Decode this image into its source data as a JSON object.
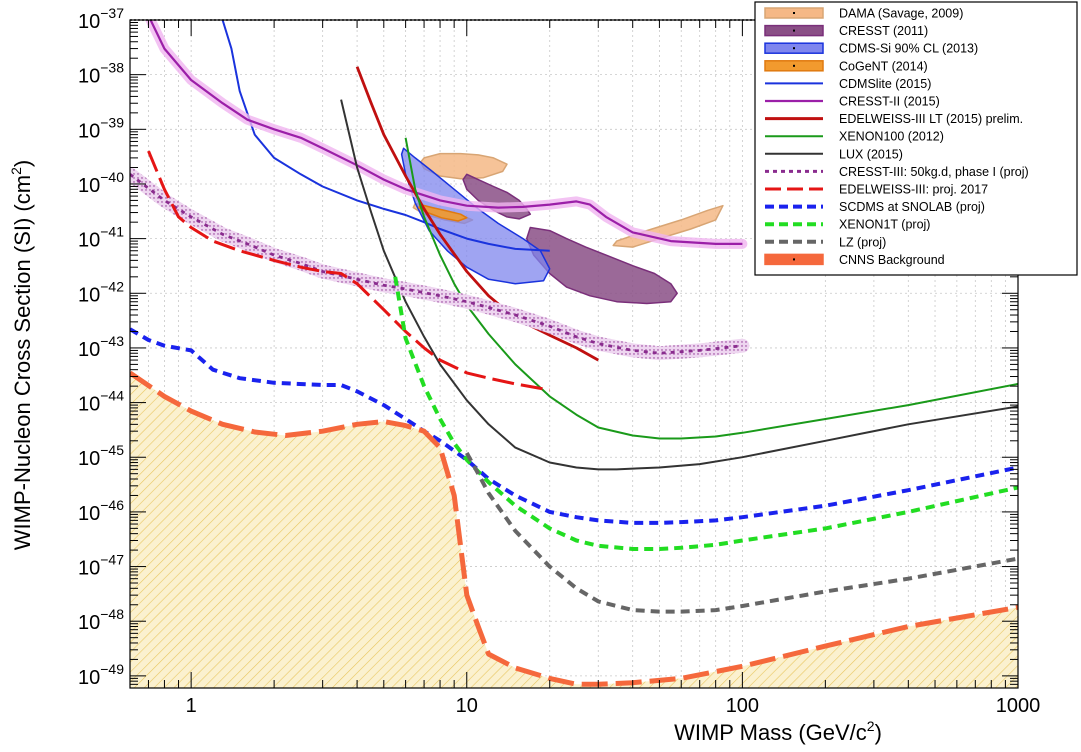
{
  "chart_data": {
    "type": "line",
    "xlabel": "WIMP Mass (GeV/c",
    "xlabel_sup": "2",
    "xlabel_end": ")",
    "ylabel": "WIMP-Nucleon Cross Section (SI) (cm",
    "ylabel_sup": "2",
    "ylabel_end": ")",
    "x_scale": "log",
    "y_scale": "log",
    "xlim": [
      0.6,
      1000
    ],
    "ylim": [
      6e-50,
      1e-37
    ],
    "x_tick_labels": [
      {
        "value": 1,
        "label": "1"
      },
      {
        "value": 10,
        "label": "10"
      },
      {
        "value": 100,
        "label": "100"
      },
      {
        "value": 1000,
        "label": "1000"
      }
    ],
    "y_tick_labels": [
      {
        "exp": -37,
        "base": "10",
        "sup": "−37"
      },
      {
        "exp": -38,
        "base": "10",
        "sup": "−38"
      },
      {
        "exp": -39,
        "base": "10",
        "sup": "−39"
      },
      {
        "exp": -40,
        "base": "10",
        "sup": "−40"
      },
      {
        "exp": -41,
        "base": "10",
        "sup": "−41"
      },
      {
        "exp": -42,
        "base": "10",
        "sup": "−42"
      },
      {
        "exp": -43,
        "base": "10",
        "sup": "−43"
      },
      {
        "exp": -44,
        "base": "10",
        "sup": "−44"
      },
      {
        "exp": -45,
        "base": "10",
        "sup": "−45"
      },
      {
        "exp": -46,
        "base": "10",
        "sup": "−46"
      },
      {
        "exp": -47,
        "base": "10",
        "sup": "−47"
      },
      {
        "exp": -48,
        "base": "10",
        "sup": "−48"
      },
      {
        "exp": -49,
        "base": "10",
        "sup": "−49"
      }
    ],
    "grid": true,
    "legend_position": "top-right",
    "background_region": {
      "name": "CNNS Background",
      "fill": "#f3e6b8",
      "hatch": "#e7c96b",
      "x": [
        0.6,
        0.8,
        1,
        1.3,
        1.7,
        2.2,
        3,
        4,
        5,
        6,
        7,
        8,
        9,
        10,
        11,
        12,
        15,
        20,
        25,
        30,
        40,
        60,
        100,
        200,
        400,
        1000
      ],
      "y": [
        3.5e-44,
        1.3e-44,
        7e-45,
        4e-45,
        2.9e-45,
        2.5e-45,
        3e-45,
        4e-45,
        4.5e-45,
        3.8e-45,
        3e-45,
        1.5e-45,
        2e-46,
        3e-48,
        8e-49,
        2.5e-49,
        1.4e-49,
        9e-50,
        7e-50,
        7e-50,
        7.5e-50,
        9e-50,
        1.5e-49,
        3.5e-49,
        8e-49,
        1.8e-48
      ]
    },
    "regions": [
      {
        "name": "DAMA (Savage, 2009)",
        "fill": "#f5b886",
        "stroke": "#d8a574",
        "opacity": 0.85,
        "blobs": [
          {
            "x": [
              7,
              8,
              9.5,
              11,
              12.5,
              14,
              13.5,
              11.5,
              9.5,
              8,
              7,
              6.8
            ],
            "y": [
              3e-40,
              3.6e-40,
              3.6e-40,
              3.4e-40,
              3e-40,
              2.3e-40,
              1.7e-40,
              1.3e-40,
              1.25e-40,
              1.4e-40,
              1.9e-40,
              2.5e-40
            ]
          },
          {
            "x": [
              6.5,
              7.2,
              8.3,
              9.5,
              10.5,
              9.8,
              8.3,
              7,
              6.4
            ],
            "y": [
              4.4e-41,
              3.9e-41,
              3.3e-41,
              2.7e-41,
              2.2e-41,
              1.9e-41,
              2.2e-41,
              2.8e-41,
              3.7e-41
            ]
          },
          {
            "x": [
              35,
              45,
              60,
              75,
              85,
              80,
              65,
              50,
              40,
              34
            ],
            "y": [
              9e-42,
              1.4e-41,
              2.2e-41,
              3.3e-41,
              4e-41,
              2.2e-41,
              1.5e-41,
              1e-41,
              7e-42,
              7.5e-42
            ]
          }
        ]
      },
      {
        "name": "CRESST (2011)",
        "fill": "#8a4f86",
        "stroke": "#7a2f7a",
        "opacity": 0.85,
        "blobs": [
          {
            "x": [
              10,
              11,
              12.5,
              14,
              15.5,
              16.5,
              17,
              15.5,
              14,
              12.5,
              11,
              10,
              9.7
            ],
            "y": [
              1.5e-40,
              1.2e-40,
              9e-41,
              7e-41,
              5e-41,
              3.5e-41,
              2.8e-41,
              2.3e-41,
              2.5e-41,
              3.3e-41,
              5e-41,
              8e-41,
              1.2e-40
            ]
          },
          {
            "x": [
              17,
              20,
              23,
              27,
              32,
              40,
              48,
              55,
              58,
              55,
              45,
              35,
              28,
              23,
              20,
              17.5,
              16.5
            ],
            "y": [
              1.6e-41,
              1.4e-41,
              1e-41,
              7e-42,
              5e-42,
              3.2e-42,
              2.3e-42,
              1.5e-42,
              1e-42,
              7e-43,
              6.5e-43,
              7e-43,
              9e-43,
              1.3e-42,
              2.3e-42,
              5e-42,
              1e-41
            ]
          }
        ]
      },
      {
        "name": "CDMS-Si 90% CL (2013)",
        "fill": "#7f86ee",
        "stroke": "#1a33dd",
        "opacity": 0.75,
        "blobs": [
          {
            "x": [
              5.9,
              6.5,
              7.5,
              9,
              11,
              13,
              16,
              18.5,
              20,
              19,
              15,
              12,
              10,
              8.5,
              7.3,
              6.5,
              6,
              5.8
            ],
            "y": [
              4.5e-40,
              3e-40,
              1.7e-40,
              8e-41,
              3.5e-41,
              1.9e-41,
              1e-41,
              6e-42,
              2.8e-42,
              1.7e-42,
              1.5e-42,
              1.8e-42,
              3e-42,
              6e-42,
              1.4e-41,
              4.5e-41,
              1.5e-40,
              3.5e-40
            ]
          }
        ]
      },
      {
        "name": "CoGeNT (2014)",
        "fill": "#f29a2e",
        "stroke": "#e07a10",
        "opacity": 0.9,
        "blobs": [
          {
            "x": [
              6.8,
              7.5,
              8.5,
              9.5,
              10,
              9.3,
              8.1,
              7.2,
              6.7
            ],
            "y": [
              4.2e-41,
              3.7e-41,
              3.2e-41,
              2.8e-41,
              2.4e-41,
              2.1e-41,
              2.4e-41,
              3e-41,
              3.7e-41
            ]
          }
        ]
      }
    ],
    "series": [
      {
        "name": "CDMSlite (2015)",
        "color": "#1a33dd",
        "width": 2,
        "dash": "",
        "x": [
          1.3,
          1.4,
          1.5,
          1.7,
          2,
          2.5,
          3,
          4,
          5,
          6,
          7,
          8,
          10,
          12,
          15,
          20
        ],
        "y": [
          1e-37,
          3e-38,
          5e-39,
          8e-40,
          3e-40,
          1.5e-40,
          9e-41,
          5e-41,
          3.5e-41,
          2.7e-41,
          2e-41,
          1.5e-41,
          1e-41,
          8e-42,
          6.5e-42,
          6e-42
        ]
      },
      {
        "name": "CRESST-II (2015)",
        "color": "#9b1fa8",
        "width": 2.2,
        "dash": "",
        "band": "#f0b4f0",
        "band_width": 10,
        "x": [
          0.6,
          0.7,
          0.8,
          1,
          1.3,
          1.6,
          2,
          2.5,
          3,
          4,
          5,
          6,
          8,
          10,
          13,
          16,
          20,
          25,
          28,
          32,
          40,
          55,
          80,
          100
        ],
        "y": [
          3e-37,
          1.2e-37,
          3e-38,
          8e-39,
          3e-39,
          1.5e-39,
          1e-39,
          7e-40,
          4.5e-40,
          2.2e-40,
          1.2e-40,
          8e-41,
          5e-41,
          4e-41,
          3.7e-41,
          3.8e-41,
          4.2e-41,
          4.8e-41,
          4.2e-41,
          2.5e-41,
          1.3e-41,
          9e-42,
          8e-42,
          8e-42
        ]
      },
      {
        "name": "EDELWEISS-III LT (2015) prelim.",
        "color": "#c01010",
        "width": 2.8,
        "dash": "",
        "x": [
          4,
          4.5,
          5,
          6,
          7,
          8,
          10,
          12,
          15,
          20,
          25,
          30
        ],
        "y": [
          1.4e-38,
          3e-39,
          8e-40,
          1.4e-40,
          3.5e-41,
          1.2e-41,
          2.5e-42,
          9e-43,
          3.5e-43,
          1.7e-43,
          1e-43,
          6e-44
        ]
      },
      {
        "name": "XENON100 (2012)",
        "color": "#1a9a1a",
        "width": 2,
        "dash": "",
        "x": [
          6,
          6.5,
          7,
          8,
          9,
          10,
          12,
          15,
          20,
          25,
          30,
          40,
          50,
          60,
          80,
          100,
          200,
          400,
          1000
        ],
        "y": [
          7e-40,
          8e-41,
          2.5e-41,
          5e-42,
          1.5e-42,
          6e-43,
          1.8e-43,
          5e-44,
          1.3e-44,
          6e-45,
          3.5e-45,
          2.5e-45,
          2.2e-45,
          2.2e-45,
          2.4e-45,
          2.8e-45,
          5e-45,
          9e-45,
          2.2e-44
        ]
      },
      {
        "name": "LUX (2015)",
        "color": "#333333",
        "width": 2,
        "dash": "",
        "x": [
          3.5,
          4,
          4.5,
          5,
          6,
          7,
          8,
          10,
          12,
          15,
          20,
          25,
          30,
          35,
          40,
          50,
          70,
          100,
          200,
          400,
          1000
        ],
        "y": [
          3.5e-39,
          2e-40,
          3e-41,
          6e-42,
          7e-43,
          1.6e-43,
          5e-44,
          1.1e-44,
          4e-45,
          1.5e-45,
          8e-46,
          6.5e-46,
          6e-46,
          6e-46,
          6.2e-46,
          6.5e-46,
          7.5e-46,
          1e-45,
          2e-45,
          4e-45,
          8.5e-45
        ]
      },
      {
        "name": "CRESST-III: 50kg.d, phase I (proj)",
        "color": "#8a2c8e",
        "width": 2.8,
        "dash": "4,5",
        "band": "#e7c6ea",
        "band_width": 14,
        "band_hatch": true,
        "x": [
          0.6,
          0.8,
          1,
          1.3,
          1.6,
          2,
          2.5,
          3,
          4,
          5,
          6,
          8,
          10,
          12,
          15,
          20,
          25,
          30,
          40,
          50,
          70,
          100
        ],
        "y": [
          1.5e-40,
          5e-41,
          2.5e-41,
          1.2e-41,
          8e-42,
          5e-42,
          3.5e-42,
          2.5e-42,
          1.8e-42,
          1.4e-42,
          1.2e-42,
          9e-43,
          7e-43,
          5.5e-43,
          4e-43,
          2.5e-43,
          1.6e-43,
          1.2e-43,
          9e-44,
          8e-44,
          9e-44,
          1.1e-43
        ]
      },
      {
        "name": "EDELWEISS-III: proj. 2017",
        "color": "#e51515",
        "width": 3,
        "dash": "22,7",
        "x": [
          0.7,
          0.8,
          0.9,
          1,
          1.2,
          1.5,
          2,
          2.5,
          3,
          3.5,
          4,
          5,
          6,
          7,
          8,
          10,
          12,
          15,
          20
        ],
        "y": [
          4e-40,
          8e-41,
          2.5e-41,
          1.6e-41,
          9e-42,
          6e-42,
          4e-42,
          3e-42,
          2.5e-42,
          2.3e-42,
          1.5e-42,
          5e-43,
          2e-43,
          1e-43,
          6e-44,
          3.5e-44,
          2.8e-44,
          2.2e-44,
          1.7e-44
        ]
      },
      {
        "name": "SCDMS at SNOLAB (proj)",
        "color": "#1a22ee",
        "width": 4,
        "dash": "9,6",
        "x": [
          0.6,
          0.7,
          0.8,
          1,
          1.2,
          1.5,
          2,
          3,
          3.5,
          4,
          5,
          6,
          7,
          8,
          10,
          12,
          15,
          20,
          25,
          30,
          40,
          50,
          60,
          80,
          100,
          200,
          400,
          1000
        ],
        "y": [
          2.2e-43,
          1.4e-43,
          1.1e-43,
          9e-44,
          4e-44,
          2.8e-44,
          2.3e-44,
          2.1e-44,
          2.1e-44,
          1.6e-44,
          9e-45,
          5e-45,
          3e-45,
          2e-45,
          9e-46,
          4e-46,
          2e-46,
          1e-46,
          8e-47,
          7e-47,
          6.3e-47,
          6.3e-47,
          6.5e-47,
          7e-47,
          8e-47,
          1.3e-46,
          2.5e-46,
          6.5e-46
        ]
      },
      {
        "name": "XENON1T (proj)",
        "color": "#22dd22",
        "width": 4,
        "dash": "9,6",
        "x": [
          5.5,
          6,
          7,
          8,
          9,
          10,
          12,
          15,
          20,
          25,
          30,
          40,
          50,
          60,
          80,
          100,
          200,
          400,
          1000
        ],
        "y": [
          2e-42,
          1.5e-43,
          2e-44,
          5e-45,
          1.8e-45,
          9e-46,
          3.5e-46,
          1.3e-46,
          5e-47,
          3e-47,
          2.4e-47,
          2.1e-47,
          2.1e-47,
          2.2e-47,
          2.5e-47,
          3e-47,
          5e-47,
          1e-46,
          2.8e-46
        ]
      },
      {
        "name": "LZ (proj)",
        "color": "#666666",
        "width": 4,
        "dash": "9,6",
        "x": [
          10,
          11,
          12,
          15,
          20,
          25,
          30,
          40,
          50,
          60,
          80,
          100,
          200,
          400,
          1000
        ],
        "y": [
          1.2e-45,
          5e-46,
          2.2e-46,
          4.5e-47,
          1e-47,
          4e-48,
          2.3e-48,
          1.6e-48,
          1.5e-48,
          1.5e-48,
          1.6e-48,
          1.9e-48,
          3.5e-48,
          6e-48,
          1.4e-47
        ]
      },
      {
        "name": "CNNS Background",
        "color": "#f5683c",
        "width": 5,
        "dash": "26,8",
        "x": [
          0.6,
          0.8,
          1,
          1.3,
          1.7,
          2.2,
          3,
          4,
          5,
          6,
          7,
          8,
          9,
          10,
          11,
          12,
          15,
          20,
          25,
          30,
          40,
          60,
          100,
          200,
          400,
          1000
        ],
        "y": [
          3.5e-44,
          1.3e-44,
          7e-45,
          4e-45,
          2.9e-45,
          2.5e-45,
          3e-45,
          4e-45,
          4.5e-45,
          3.8e-45,
          3e-45,
          1.5e-45,
          2e-46,
          3e-48,
          8e-49,
          2.5e-49,
          1.4e-49,
          9e-50,
          7e-50,
          7e-50,
          7.5e-50,
          9e-50,
          1.5e-49,
          3.5e-49,
          8e-49,
          1.8e-48
        ]
      }
    ],
    "legend": [
      {
        "label": "DAMA (Savage, 2009)",
        "kind": "region",
        "fill": "#f5b886",
        "stroke": "#d8a574"
      },
      {
        "label": "CRESST (2011)",
        "kind": "region",
        "fill": "#8a4f86",
        "stroke": "#7a2f7a"
      },
      {
        "label": "CDMS-Si 90% CL (2013)",
        "kind": "region",
        "fill": "#7f86ee",
        "stroke": "#1a33dd"
      },
      {
        "label": "CoGeNT (2014)",
        "kind": "region",
        "fill": "#f29a2e",
        "stroke": "#e07a10"
      },
      {
        "label": "CDMSlite (2015)",
        "kind": "line",
        "color": "#1a33dd",
        "width": 2,
        "dash": ""
      },
      {
        "label": "CRESST-II (2015)",
        "kind": "line",
        "color": "#9b1fa8",
        "width": 2.2,
        "dash": ""
      },
      {
        "label": "EDELWEISS-III LT (2015) prelim.",
        "kind": "line",
        "color": "#c01010",
        "width": 3,
        "dash": ""
      },
      {
        "label": "XENON100 (2012)",
        "kind": "line",
        "color": "#1a9a1a",
        "width": 2,
        "dash": ""
      },
      {
        "label": "LUX (2015)",
        "kind": "line",
        "color": "#333333",
        "width": 2,
        "dash": ""
      },
      {
        "label": "CRESST-III: 50kg.d, phase I (proj)",
        "kind": "line",
        "color": "#8a2c8e",
        "width": 3,
        "dash": "4,4"
      },
      {
        "label": "EDELWEISS-III: proj. 2017",
        "kind": "line",
        "color": "#e51515",
        "width": 3,
        "dash": "16,6"
      },
      {
        "label": "SCDMS at SNOLAB (proj)",
        "kind": "line",
        "color": "#1a22ee",
        "width": 4,
        "dash": "9,5"
      },
      {
        "label": "XENON1T (proj)",
        "kind": "line",
        "color": "#22dd22",
        "width": 4,
        "dash": "9,5"
      },
      {
        "label": "LZ (proj)",
        "kind": "line",
        "color": "#666666",
        "width": 4,
        "dash": "9,5"
      },
      {
        "label": "CNNS Background",
        "kind": "region",
        "fill": "#f5683c",
        "stroke": "#f5683c"
      }
    ]
  }
}
